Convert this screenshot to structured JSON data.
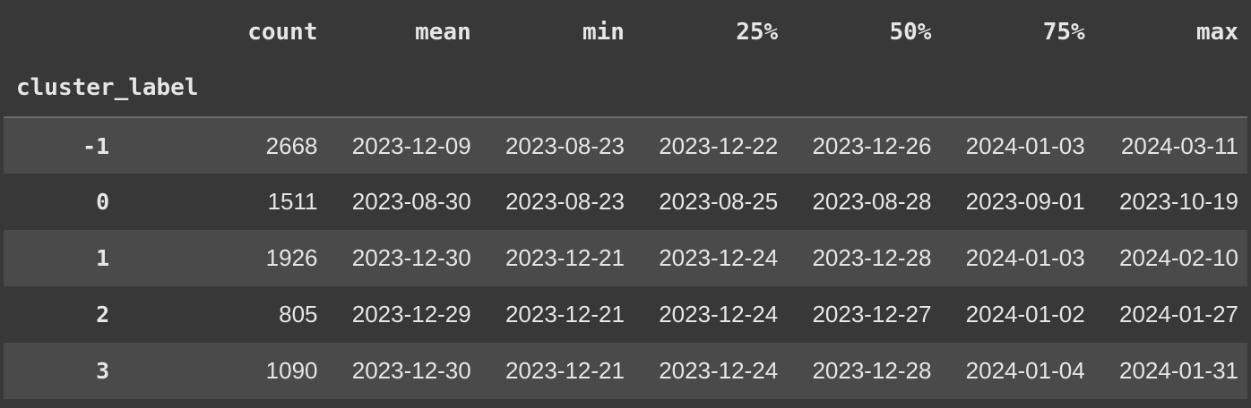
{
  "table": {
    "columns": [
      "count",
      "mean",
      "min",
      "25%",
      "50%",
      "75%",
      "max"
    ],
    "index_name": "cluster_label",
    "rows": [
      {
        "index": "-1",
        "values": [
          "2668",
          "2023-12-09",
          "2023-08-23",
          "2023-12-22",
          "2023-12-26",
          "2024-01-03",
          "2024-03-11"
        ]
      },
      {
        "index": "0",
        "values": [
          "1511",
          "2023-08-30",
          "2023-08-23",
          "2023-08-25",
          "2023-08-28",
          "2023-09-01",
          "2023-10-19"
        ]
      },
      {
        "index": "1",
        "values": [
          "1926",
          "2023-12-30",
          "2023-12-21",
          "2023-12-24",
          "2023-12-28",
          "2024-01-03",
          "2024-02-10"
        ]
      },
      {
        "index": "2",
        "values": [
          "805",
          "2023-12-29",
          "2023-12-21",
          "2023-12-24",
          "2023-12-27",
          "2024-01-02",
          "2024-01-27"
        ]
      },
      {
        "index": "3",
        "values": [
          "1090",
          "2023-12-30",
          "2023-12-21",
          "2023-12-24",
          "2023-12-28",
          "2024-01-04",
          "2024-01-31"
        ]
      }
    ]
  }
}
